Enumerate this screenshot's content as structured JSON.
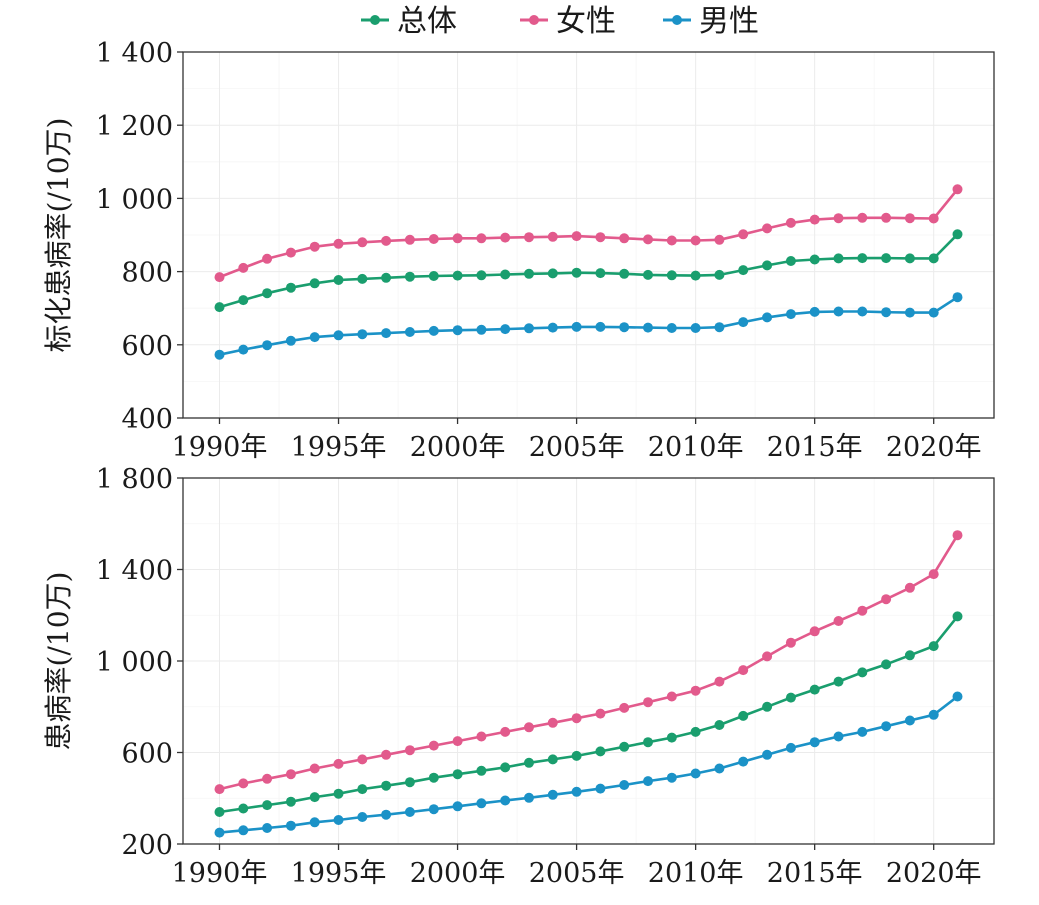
{
  "legend": {
    "items": [
      {
        "label": "总体",
        "color": "#1a9e6e"
      },
      {
        "label": "女性",
        "color": "#e25a8c"
      },
      {
        "label": "男性",
        "color": "#1b92c7"
      }
    ]
  },
  "chart_data": [
    {
      "type": "line",
      "ylabel": "标化患病率(/10万)",
      "xlabel": "",
      "xlim": [
        1990,
        2021
      ],
      "ylim": [
        400,
        1400
      ],
      "x_ticks": [
        1990,
        1995,
        2000,
        2005,
        2010,
        2015,
        2020
      ],
      "x_tick_labels": [
        "1990年",
        "1995年",
        "2000年",
        "2005年",
        "2010年",
        "2015年",
        "2020年"
      ],
      "y_ticks": [
        400,
        600,
        800,
        1000,
        1200,
        1400
      ],
      "y_tick_labels": [
        "400",
        "600",
        "800",
        "1 000",
        "1 200",
        "1 400"
      ],
      "grid": true,
      "x": [
        1990,
        1991,
        1992,
        1993,
        1994,
        1995,
        1996,
        1997,
        1998,
        1999,
        2000,
        2001,
        2002,
        2003,
        2004,
        2005,
        2006,
        2007,
        2008,
        2009,
        2010,
        2011,
        2012,
        2013,
        2014,
        2015,
        2016,
        2017,
        2018,
        2019,
        2020,
        2021
      ],
      "series": [
        {
          "name": "女性",
          "color": "#e25a8c",
          "values": [
            785,
            810,
            835,
            852,
            868,
            876,
            880,
            884,
            887,
            889,
            891,
            891,
            893,
            894,
            895,
            897,
            894,
            891,
            888,
            885,
            885,
            887,
            902,
            918,
            933,
            942,
            946,
            947,
            947,
            946,
            945,
            1025
          ]
        },
        {
          "name": "总体",
          "color": "#1a9e6e",
          "values": [
            703,
            722,
            741,
            756,
            768,
            777,
            780,
            783,
            786,
            788,
            789,
            790,
            792,
            794,
            795,
            797,
            796,
            794,
            791,
            790,
            789,
            791,
            804,
            817,
            829,
            833,
            836,
            837,
            837,
            836,
            836,
            902
          ]
        },
        {
          "name": "男性",
          "color": "#1b92c7",
          "values": [
            573,
            587,
            599,
            611,
            621,
            626,
            629,
            632,
            635,
            638,
            640,
            641,
            643,
            645,
            647,
            649,
            649,
            648,
            647,
            646,
            646,
            648,
            662,
            675,
            684,
            690,
            691,
            691,
            689,
            688,
            688,
            730
          ]
        }
      ]
    },
    {
      "type": "line",
      "ylabel": "患病率(/10万)",
      "xlabel": "",
      "xlim": [
        1990,
        2021
      ],
      "ylim": [
        200,
        1800
      ],
      "x_ticks": [
        1990,
        1995,
        2000,
        2005,
        2010,
        2015,
        2020
      ],
      "x_tick_labels": [
        "1990年",
        "1995年",
        "2000年",
        "2005年",
        "2010年",
        "2015年",
        "2020年"
      ],
      "y_ticks": [
        200,
        600,
        1000,
        1400,
        1800
      ],
      "y_tick_labels": [
        "200",
        "600",
        "1 000",
        "1 400",
        "1 800"
      ],
      "grid": true,
      "x": [
        1990,
        1991,
        1992,
        1993,
        1994,
        1995,
        1996,
        1997,
        1998,
        1999,
        2000,
        2001,
        2002,
        2003,
        2004,
        2005,
        2006,
        2007,
        2008,
        2009,
        2010,
        2011,
        2012,
        2013,
        2014,
        2015,
        2016,
        2017,
        2018,
        2019,
        2020,
        2021
      ],
      "series": [
        {
          "name": "女性",
          "color": "#e25a8c",
          "values": [
            440,
            465,
            485,
            505,
            530,
            550,
            570,
            590,
            610,
            630,
            650,
            670,
            690,
            710,
            730,
            750,
            770,
            795,
            820,
            845,
            870,
            910,
            960,
            1020,
            1080,
            1130,
            1175,
            1220,
            1270,
            1320,
            1380,
            1550
          ]
        },
        {
          "name": "总体",
          "color": "#1a9e6e",
          "values": [
            340,
            355,
            370,
            385,
            405,
            420,
            440,
            455,
            470,
            490,
            505,
            520,
            535,
            555,
            570,
            585,
            605,
            625,
            645,
            665,
            690,
            720,
            760,
            800,
            840,
            875,
            910,
            950,
            985,
            1025,
            1065,
            1195
          ]
        },
        {
          "name": "男性",
          "color": "#1b92c7",
          "values": [
            250,
            260,
            270,
            280,
            295,
            305,
            318,
            328,
            340,
            352,
            365,
            378,
            390,
            402,
            415,
            428,
            442,
            458,
            475,
            490,
            508,
            530,
            560,
            590,
            620,
            645,
            670,
            690,
            715,
            740,
            765,
            845
          ]
        }
      ]
    }
  ]
}
